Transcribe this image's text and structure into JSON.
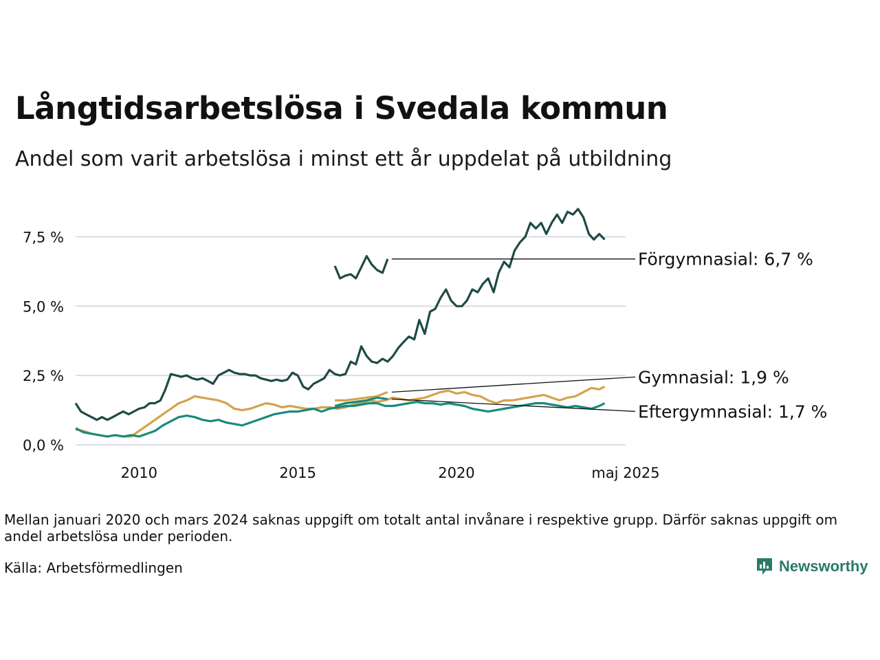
{
  "title": "Långtidsarbetslösa i Svedala kommun",
  "subtitle": "Andel som varit arbetslösa i minst ett år uppdelat på utbildning",
  "note": "Mellan januari 2020 och mars 2024 saknas uppgift om totalt antal invånare i respektive grupp. Därför saknas uppgift om andel arbetslösa under perioden.",
  "source": "Källa: Arbetsförmedlingen",
  "brand": "Newsworthy",
  "chart_data": {
    "type": "line",
    "ylim": [
      0,
      8.6
    ],
    "y_ticks": [
      {
        "value": 0,
        "label": "0,0 %"
      },
      {
        "value": 2.5,
        "label": "2,5 %"
      },
      {
        "value": 5,
        "label": "5,0 %"
      },
      {
        "value": 7.5,
        "label": "7,5 %"
      }
    ],
    "x_ticks": [
      {
        "value": 2010,
        "label": "2010"
      },
      {
        "value": 2015,
        "label": "2015"
      },
      {
        "value": 2020,
        "label": "2020"
      },
      {
        "value": 2025.33,
        "label": "maj 2025"
      }
    ],
    "xlim": [
      2008.0,
      2025.33
    ],
    "grid": true,
    "series": [
      {
        "name": "Förgymnasial",
        "end_label": "Förgymnasial: 6,7 %",
        "color": "#1f4a44",
        "segments": [
          [
            [
              2008.0,
              1.5
            ],
            [
              2008.17,
              1.2
            ],
            [
              2008.33,
              1.1
            ],
            [
              2008.5,
              1.0
            ],
            [
              2008.67,
              0.9
            ],
            [
              2008.83,
              1.0
            ],
            [
              2009.0,
              0.9
            ],
            [
              2009.17,
              1.0
            ],
            [
              2009.33,
              1.1
            ],
            [
              2009.5,
              1.2
            ],
            [
              2009.67,
              1.1
            ],
            [
              2009.83,
              1.2
            ],
            [
              2010.0,
              1.3
            ],
            [
              2010.17,
              1.35
            ],
            [
              2010.33,
              1.5
            ],
            [
              2010.5,
              1.5
            ],
            [
              2010.67,
              1.6
            ],
            [
              2010.83,
              2.0
            ],
            [
              2011.0,
              2.55
            ],
            [
              2011.17,
              2.5
            ],
            [
              2011.33,
              2.45
            ],
            [
              2011.5,
              2.5
            ],
            [
              2011.67,
              2.4
            ],
            [
              2011.83,
              2.35
            ],
            [
              2012.0,
              2.4
            ],
            [
              2012.17,
              2.3
            ],
            [
              2012.33,
              2.2
            ],
            [
              2012.5,
              2.5
            ],
            [
              2012.67,
              2.6
            ],
            [
              2012.83,
              2.7
            ],
            [
              2013.0,
              2.6
            ],
            [
              2013.17,
              2.55
            ],
            [
              2013.33,
              2.55
            ],
            [
              2013.5,
              2.5
            ],
            [
              2013.67,
              2.5
            ],
            [
              2013.83,
              2.4
            ],
            [
              2014.0,
              2.35
            ],
            [
              2014.17,
              2.3
            ],
            [
              2014.33,
              2.35
            ],
            [
              2014.5,
              2.3
            ],
            [
              2014.67,
              2.35
            ],
            [
              2014.83,
              2.6
            ],
            [
              2015.0,
              2.5
            ],
            [
              2015.17,
              2.1
            ],
            [
              2015.33,
              2.0
            ],
            [
              2015.5,
              2.2
            ],
            [
              2015.67,
              2.3
            ],
            [
              2015.83,
              2.4
            ],
            [
              2016.0,
              2.7
            ],
            [
              2016.17,
              2.55
            ],
            [
              2016.33,
              2.5
            ],
            [
              2016.5,
              2.55
            ],
            [
              2016.67,
              3.0
            ],
            [
              2016.83,
              2.9
            ],
            [
              2017.0,
              3.55
            ],
            [
              2017.17,
              3.2
            ],
            [
              2017.33,
              3.0
            ],
            [
              2017.5,
              2.95
            ],
            [
              2017.67,
              3.1
            ],
            [
              2017.83,
              3.0
            ],
            [
              2018.0,
              3.2
            ],
            [
              2018.17,
              3.5
            ],
            [
              2018.33,
              3.7
            ],
            [
              2018.5,
              3.9
            ],
            [
              2018.67,
              3.8
            ],
            [
              2018.83,
              4.5
            ],
            [
              2019.0,
              4.0
            ],
            [
              2019.17,
              4.8
            ],
            [
              2019.33,
              4.9
            ],
            [
              2019.5,
              5.3
            ],
            [
              2019.67,
              5.6
            ],
            [
              2019.83,
              5.2
            ],
            [
              2020.0,
              5.0
            ],
            [
              2020.17,
              5.0
            ],
            [
              2020.33,
              5.2
            ],
            [
              2020.5,
              5.6
            ],
            [
              2020.67,
              5.5
            ],
            [
              2020.83,
              5.8
            ],
            [
              2021.0,
              6.0
            ],
            [
              2021.17,
              5.5
            ],
            [
              2021.33,
              6.2
            ],
            [
              2021.5,
              6.6
            ],
            [
              2021.67,
              6.4
            ],
            [
              2021.83,
              7.0
            ],
            [
              2022.0,
              7.3
            ],
            [
              2022.17,
              7.5
            ],
            [
              2022.33,
              8.0
            ],
            [
              2022.5,
              7.8
            ],
            [
              2022.67,
              8.0
            ],
            [
              2022.83,
              7.6
            ],
            [
              2023.0,
              8.0
            ],
            [
              2023.17,
              8.3
            ],
            [
              2023.33,
              8.0
            ],
            [
              2023.5,
              8.4
            ],
            [
              2023.67,
              8.3
            ],
            [
              2023.83,
              8.5
            ],
            [
              2024.0,
              8.2
            ],
            [
              2024.17,
              7.6
            ],
            [
              2024.33,
              7.4
            ],
            [
              2024.5,
              7.6
            ],
            [
              2024.67,
              7.4
            ]
          ],
          [
            [
              2016.17,
              6.45
            ],
            [
              2016.33,
              6.0
            ],
            [
              2016.5,
              6.1
            ],
            [
              2016.67,
              6.15
            ],
            [
              2016.83,
              6.0
            ],
            [
              2017.0,
              6.4
            ],
            [
              2017.17,
              6.8
            ],
            [
              2017.33,
              6.5
            ],
            [
              2017.5,
              6.3
            ],
            [
              2017.67,
              6.2
            ],
            [
              2017.83,
              6.7
            ]
          ]
        ]
      },
      {
        "name": "Gymnasial",
        "end_label": "Gymnasial: 1,9 %",
        "color": "#d4a24c",
        "segments": [
          [
            [
              2008.0,
              0.55
            ],
            [
              2008.25,
              0.5
            ],
            [
              2008.5,
              0.4
            ],
            [
              2008.75,
              0.35
            ],
            [
              2009.0,
              0.3
            ],
            [
              2009.25,
              0.35
            ],
            [
              2009.5,
              0.3
            ],
            [
              2009.75,
              0.3
            ],
            [
              2010.0,
              0.5
            ],
            [
              2010.25,
              0.7
            ],
            [
              2010.5,
              0.9
            ],
            [
              2010.75,
              1.1
            ],
            [
              2011.0,
              1.3
            ],
            [
              2011.25,
              1.5
            ],
            [
              2011.5,
              1.6
            ],
            [
              2011.75,
              1.75
            ],
            [
              2012.0,
              1.7
            ],
            [
              2012.25,
              1.65
            ],
            [
              2012.5,
              1.6
            ],
            [
              2012.75,
              1.5
            ],
            [
              2013.0,
              1.3
            ],
            [
              2013.25,
              1.25
            ],
            [
              2013.5,
              1.3
            ],
            [
              2013.75,
              1.4
            ],
            [
              2014.0,
              1.5
            ],
            [
              2014.25,
              1.45
            ],
            [
              2014.5,
              1.35
            ],
            [
              2014.75,
              1.4
            ],
            [
              2015.0,
              1.35
            ],
            [
              2015.25,
              1.3
            ],
            [
              2015.5,
              1.3
            ],
            [
              2015.75,
              1.35
            ],
            [
              2016.0,
              1.35
            ],
            [
              2016.25,
              1.3
            ],
            [
              2016.5,
              1.35
            ],
            [
              2016.75,
              1.45
            ],
            [
              2017.0,
              1.5
            ],
            [
              2017.25,
              1.6
            ],
            [
              2017.5,
              1.55
            ],
            [
              2017.75,
              1.6
            ],
            [
              2018.0,
              1.7
            ],
            [
              2018.25,
              1.65
            ],
            [
              2018.5,
              1.6
            ],
            [
              2018.75,
              1.65
            ],
            [
              2019.0,
              1.7
            ],
            [
              2019.25,
              1.8
            ],
            [
              2019.5,
              1.9
            ],
            [
              2019.75,
              1.95
            ],
            [
              2020.0,
              1.85
            ],
            [
              2020.25,
              1.9
            ],
            [
              2020.5,
              1.8
            ],
            [
              2020.75,
              1.75
            ],
            [
              2021.0,
              1.6
            ],
            [
              2021.25,
              1.5
            ],
            [
              2021.5,
              1.6
            ],
            [
              2021.75,
              1.6
            ],
            [
              2022.0,
              1.65
            ],
            [
              2022.25,
              1.7
            ],
            [
              2022.5,
              1.75
            ],
            [
              2022.75,
              1.8
            ],
            [
              2023.0,
              1.7
            ],
            [
              2023.25,
              1.6
            ],
            [
              2023.5,
              1.7
            ],
            [
              2023.75,
              1.75
            ],
            [
              2024.0,
              1.9
            ],
            [
              2024.25,
              2.05
            ],
            [
              2024.5,
              2.0
            ],
            [
              2024.67,
              2.1
            ]
          ],
          [
            [
              2016.17,
              1.6
            ],
            [
              2016.5,
              1.6
            ],
            [
              2016.83,
              1.65
            ],
            [
              2017.17,
              1.7
            ],
            [
              2017.5,
              1.75
            ],
            [
              2017.83,
              1.9
            ]
          ]
        ]
      },
      {
        "name": "Eftergymnasial",
        "end_label": "Eftergymnasial: 1,7 %",
        "color": "#1a8a7a",
        "segments": [
          [
            [
              2008.0,
              0.6
            ],
            [
              2008.25,
              0.45
            ],
            [
              2008.5,
              0.4
            ],
            [
              2008.75,
              0.35
            ],
            [
              2009.0,
              0.3
            ],
            [
              2009.25,
              0.35
            ],
            [
              2009.5,
              0.3
            ],
            [
              2009.75,
              0.35
            ],
            [
              2010.0,
              0.3
            ],
            [
              2010.25,
              0.4
            ],
            [
              2010.5,
              0.5
            ],
            [
              2010.75,
              0.7
            ],
            [
              2011.0,
              0.85
            ],
            [
              2011.25,
              1.0
            ],
            [
              2011.5,
              1.05
            ],
            [
              2011.75,
              1.0
            ],
            [
              2012.0,
              0.9
            ],
            [
              2012.25,
              0.85
            ],
            [
              2012.5,
              0.9
            ],
            [
              2012.75,
              0.8
            ],
            [
              2013.0,
              0.75
            ],
            [
              2013.25,
              0.7
            ],
            [
              2013.5,
              0.8
            ],
            [
              2013.75,
              0.9
            ],
            [
              2014.0,
              1.0
            ],
            [
              2014.25,
              1.1
            ],
            [
              2014.5,
              1.15
            ],
            [
              2014.75,
              1.2
            ],
            [
              2015.0,
              1.2
            ],
            [
              2015.25,
              1.25
            ],
            [
              2015.5,
              1.3
            ],
            [
              2015.75,
              1.2
            ],
            [
              2016.0,
              1.3
            ],
            [
              2016.25,
              1.35
            ],
            [
              2016.5,
              1.4
            ],
            [
              2016.75,
              1.4
            ],
            [
              2017.0,
              1.45
            ],
            [
              2017.25,
              1.5
            ],
            [
              2017.5,
              1.5
            ],
            [
              2017.75,
              1.4
            ],
            [
              2018.0,
              1.4
            ],
            [
              2018.25,
              1.45
            ],
            [
              2018.5,
              1.5
            ],
            [
              2018.75,
              1.55
            ],
            [
              2019.0,
              1.5
            ],
            [
              2019.25,
              1.5
            ],
            [
              2019.5,
              1.45
            ],
            [
              2019.75,
              1.5
            ],
            [
              2020.0,
              1.45
            ],
            [
              2020.25,
              1.4
            ],
            [
              2020.5,
              1.3
            ],
            [
              2020.75,
              1.25
            ],
            [
              2021.0,
              1.2
            ],
            [
              2021.25,
              1.25
            ],
            [
              2021.5,
              1.3
            ],
            [
              2021.75,
              1.35
            ],
            [
              2022.0,
              1.4
            ],
            [
              2022.25,
              1.45
            ],
            [
              2022.5,
              1.5
            ],
            [
              2022.75,
              1.5
            ],
            [
              2023.0,
              1.45
            ],
            [
              2023.25,
              1.4
            ],
            [
              2023.5,
              1.35
            ],
            [
              2023.75,
              1.4
            ],
            [
              2024.0,
              1.35
            ],
            [
              2024.25,
              1.3
            ],
            [
              2024.5,
              1.4
            ],
            [
              2024.67,
              1.5
            ]
          ],
          [
            [
              2016.17,
              1.4
            ],
            [
              2016.5,
              1.5
            ],
            [
              2016.83,
              1.55
            ],
            [
              2017.17,
              1.6
            ],
            [
              2017.5,
              1.7
            ],
            [
              2017.83,
              1.65
            ]
          ]
        ]
      }
    ]
  }
}
